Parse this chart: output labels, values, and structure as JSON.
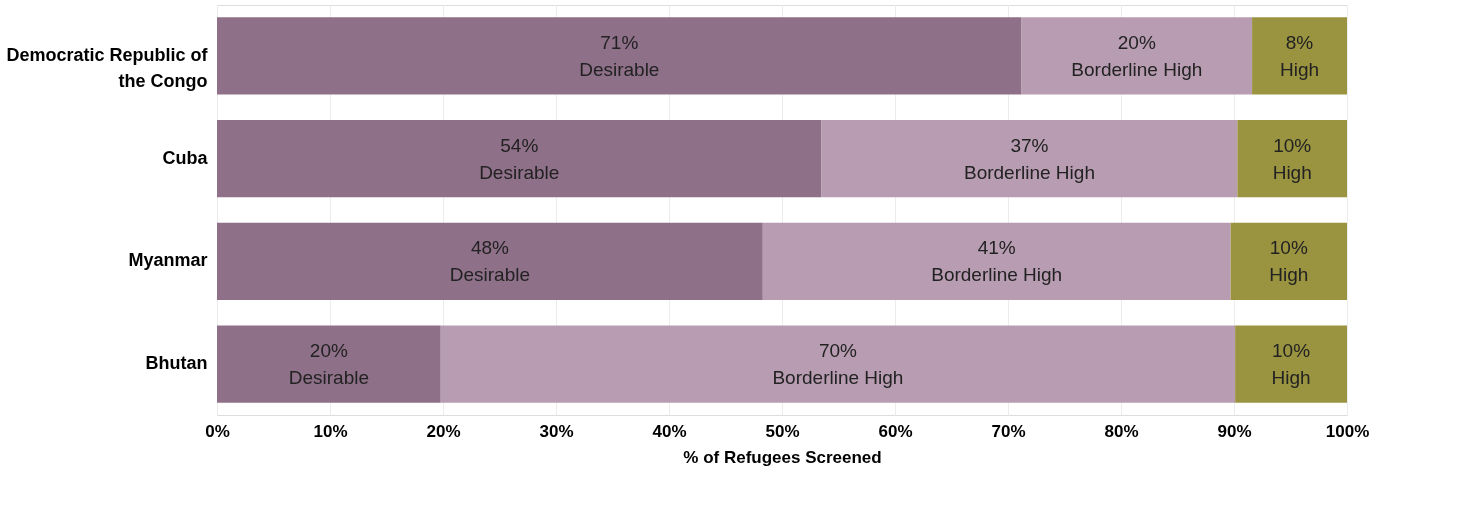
{
  "chart_data": {
    "type": "bar",
    "orientation": "horizontal",
    "stacked": true,
    "categories": [
      "Democratic Republic of the Congo",
      "Cuba",
      "Myanmar",
      "Bhutan"
    ],
    "series": [
      {
        "name": "Desirable",
        "color": "#8f7089",
        "values": [
          71.2,
          53.5,
          48.3,
          19.8
        ],
        "value_labels": [
          "71%",
          "54%",
          "48%",
          "20%"
        ]
      },
      {
        "name": "Borderline High",
        "color": "#b89db2",
        "values": [
          20.4,
          36.8,
          41.4,
          70.3
        ],
        "value_labels": [
          "20%",
          "37%",
          "41%",
          "70%"
        ]
      },
      {
        "name": "High",
        "color": "#9a9440",
        "values": [
          8.4,
          9.7,
          10.3,
          9.9
        ],
        "value_labels": [
          "8%",
          "10%",
          "10%",
          "10%"
        ]
      }
    ],
    "xlabel": "% of Refugees Screened",
    "xlim": [
      0,
      100
    ],
    "xticks": [
      {
        "value": 0,
        "label": "0%"
      },
      {
        "value": 10,
        "label": "10%"
      },
      {
        "value": 20,
        "label": "20%"
      },
      {
        "value": 30,
        "label": "30%"
      },
      {
        "value": 40,
        "label": "40%"
      },
      {
        "value": 50,
        "label": "50%"
      },
      {
        "value": 60,
        "label": "60%"
      },
      {
        "value": 70,
        "label": "70%"
      },
      {
        "value": 80,
        "label": "80%"
      },
      {
        "value": 90,
        "label": "90%"
      },
      {
        "value": 100,
        "label": "100%"
      }
    ],
    "grid": "x",
    "legend": false
  }
}
